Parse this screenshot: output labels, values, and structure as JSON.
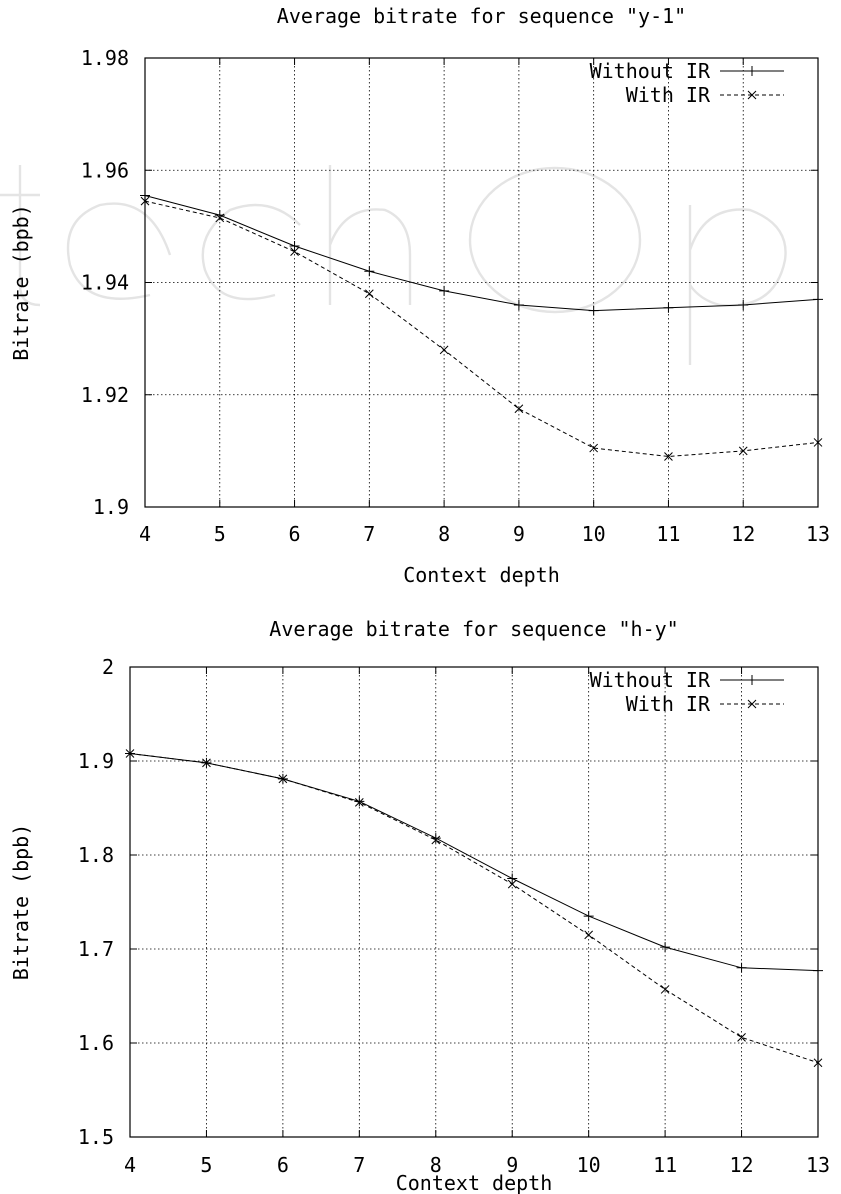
{
  "chart_data": [
    {
      "type": "line",
      "title": "Average bitrate for sequence \"y-1\"",
      "xlabel": "Context depth",
      "ylabel": "Bitrate (bpb)",
      "x": [
        4,
        5,
        6,
        7,
        8,
        9,
        10,
        11,
        12,
        13
      ],
      "xlim": [
        4,
        13
      ],
      "ylim": [
        1.9,
        1.98
      ],
      "xticks": [
        4,
        5,
        6,
        7,
        8,
        9,
        10,
        11,
        12,
        13
      ],
      "yticks": [
        1.9,
        1.92,
        1.94,
        1.96,
        1.98
      ],
      "ytick_labels": [
        "1.9",
        "1.92",
        "1.94",
        "1.96",
        "1.98"
      ],
      "grid": true,
      "legend_position": "top-right",
      "series": [
        {
          "name": "Without IR",
          "marker": "+",
          "style": "solid",
          "values": [
            1.9555,
            1.952,
            1.9465,
            1.942,
            1.9385,
            1.936,
            1.935,
            1.9355,
            1.936,
            1.937
          ]
        },
        {
          "name": "With IR",
          "marker": "x",
          "style": "dashed",
          "values": [
            1.9545,
            1.9515,
            1.9455,
            1.938,
            1.928,
            1.9175,
            1.9105,
            1.909,
            1.91,
            1.9115
          ]
        }
      ]
    },
    {
      "type": "line",
      "title": "Average bitrate for sequence \"h-y\"",
      "xlabel": "Context depth",
      "ylabel": "Bitrate (bpb)",
      "x": [
        4,
        5,
        6,
        7,
        8,
        9,
        10,
        11,
        12,
        13
      ],
      "xlim": [
        4,
        13
      ],
      "ylim": [
        1.5,
        2.0
      ],
      "xticks": [
        4,
        5,
        6,
        7,
        8,
        9,
        10,
        11,
        12,
        13
      ],
      "yticks": [
        1.5,
        1.6,
        1.7,
        1.8,
        1.9,
        2.0
      ],
      "ytick_labels": [
        "1.5",
        "1.6",
        "1.7",
        "1.8",
        "1.9",
        "2"
      ],
      "grid": true,
      "legend_position": "top-right",
      "series": [
        {
          "name": "Without IR",
          "marker": "+",
          "style": "solid",
          "values": [
            1.908,
            1.898,
            1.881,
            1.857,
            1.818,
            1.775,
            1.735,
            1.702,
            1.68,
            1.677
          ]
        },
        {
          "name": "With IR",
          "marker": "x",
          "style": "dashed",
          "values": [
            1.908,
            1.898,
            1.881,
            1.856,
            1.816,
            1.769,
            1.715,
            1.657,
            1.606,
            1.579
          ]
        }
      ]
    }
  ]
}
